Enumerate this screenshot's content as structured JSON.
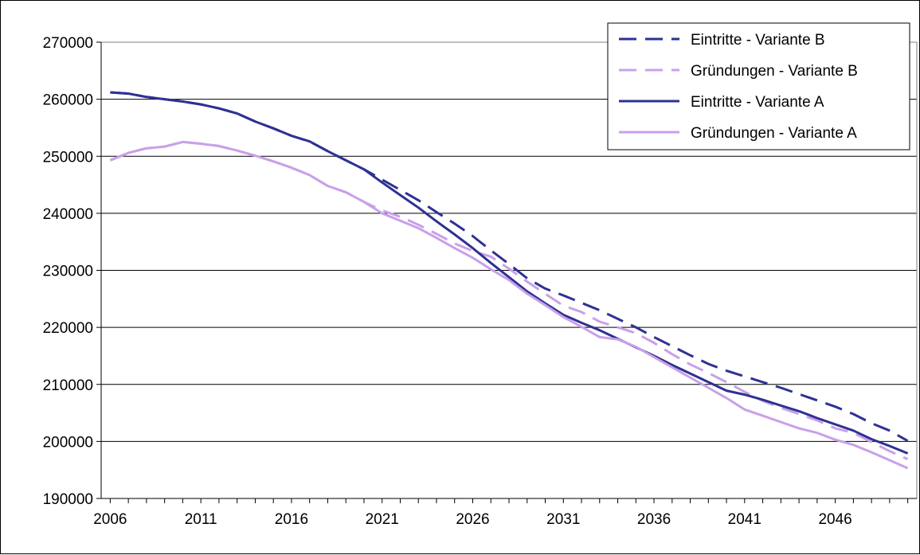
{
  "chart_data": {
    "type": "line",
    "title": "",
    "xlabel": "",
    "ylabel": "",
    "xlim": [
      2006,
      2050
    ],
    "ylim": [
      190000,
      270000
    ],
    "x_ticks": [
      2006,
      2011,
      2016,
      2021,
      2026,
      2031,
      2036,
      2041,
      2046
    ],
    "y_ticks": [
      190000,
      200000,
      210000,
      220000,
      230000,
      240000,
      250000,
      260000,
      270000
    ],
    "grid": "horizontal",
    "legend": "top-right",
    "x": [
      2006,
      2007,
      2008,
      2009,
      2010,
      2011,
      2012,
      2013,
      2014,
      2015,
      2016,
      2017,
      2018,
      2019,
      2020,
      2021,
      2022,
      2023,
      2024,
      2025,
      2026,
      2027,
      2028,
      2029,
      2030,
      2031,
      2032,
      2033,
      2034,
      2035,
      2036,
      2037,
      2038,
      2039,
      2040,
      2041,
      2042,
      2043,
      2044,
      2045,
      2046,
      2047,
      2048,
      2049,
      2050
    ],
    "series": [
      {
        "name": "Eintritte - Variante B",
        "color": "#2e3192",
        "style": "dashed",
        "values": [
          261200,
          261000,
          260400,
          260000,
          259600,
          259100,
          258400,
          257500,
          256100,
          254900,
          253600,
          252600,
          250900,
          249300,
          247700,
          245900,
          244100,
          242300,
          240200,
          238200,
          236000,
          233500,
          231100,
          228600,
          226800,
          225600,
          224300,
          223000,
          221500,
          220000,
          218300,
          216700,
          215100,
          213600,
          212400,
          211400,
          210400,
          209400,
          208300,
          207200,
          206100,
          204800,
          203200,
          201900,
          200100
        ]
      },
      {
        "name": "Gründungen - Variante B",
        "color": "#c9a0e8",
        "style": "dashed",
        "values": [
          249300,
          250600,
          251400,
          251700,
          252500,
          252200,
          251800,
          251000,
          250100,
          249100,
          248000,
          246700,
          244800,
          243700,
          242000,
          240500,
          239400,
          238000,
          236400,
          234700,
          233400,
          232400,
          230300,
          228000,
          225900,
          223800,
          222700,
          221000,
          220000,
          219000,
          217300,
          215300,
          213500,
          212000,
          210400,
          208700,
          207100,
          205900,
          204800,
          203700,
          202300,
          201500,
          199900,
          198300,
          196900
        ]
      },
      {
        "name": "Eintritte - Variante A",
        "color": "#2e3192",
        "style": "solid",
        "values": [
          261200,
          261000,
          260400,
          260000,
          259600,
          259100,
          258400,
          257500,
          256100,
          254900,
          253600,
          252600,
          250900,
          249300,
          247700,
          245400,
          243200,
          241000,
          238600,
          236300,
          233900,
          231300,
          228800,
          226300,
          224200,
          222200,
          220800,
          219500,
          218000,
          216500,
          215000,
          213400,
          211900,
          210400,
          208900,
          208200,
          207300,
          206300,
          205300,
          204100,
          203000,
          201900,
          200400,
          199200,
          197900
        ]
      },
      {
        "name": "Gründungen - Variante A",
        "color": "#c9a0e8",
        "style": "solid",
        "values": [
          249300,
          250600,
          251400,
          251700,
          252500,
          252200,
          251800,
          251000,
          250100,
          249100,
          248000,
          246700,
          244800,
          243700,
          242000,
          240000,
          238700,
          237400,
          235700,
          233900,
          232200,
          230200,
          228300,
          225900,
          223900,
          221800,
          220100,
          218300,
          217900,
          216600,
          214800,
          213000,
          211200,
          209400,
          207600,
          205600,
          204500,
          203400,
          202300,
          201500,
          200300,
          199400,
          198100,
          196700,
          195300
        ]
      }
    ]
  }
}
